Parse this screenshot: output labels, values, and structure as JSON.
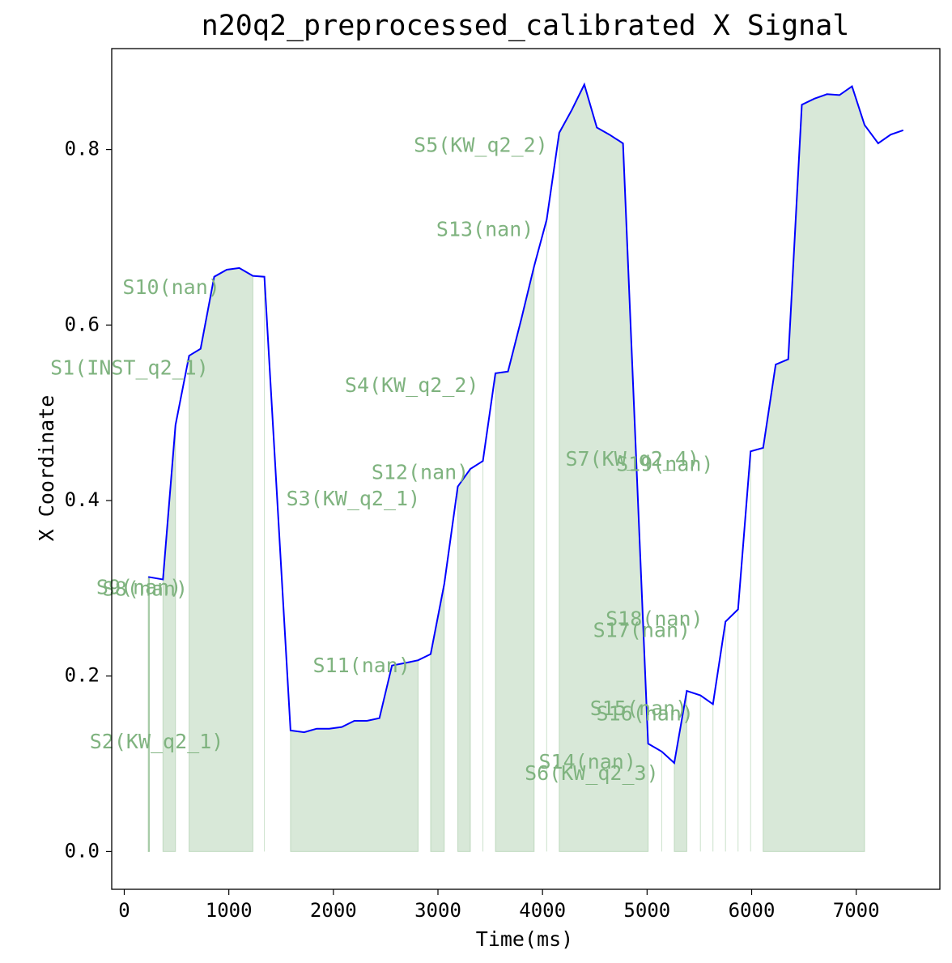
{
  "chart_data": {
    "type": "line",
    "title": "n20q2_preprocessed_calibrated X Signal",
    "xlabel": "Time(ms)",
    "ylabel": "X Coordinate",
    "xlim": [
      -120,
      7800
    ],
    "ylim": [
      -0.043,
      0.915
    ],
    "xticks": [
      0,
      1000,
      2000,
      3000,
      4000,
      5000,
      6000,
      7000
    ],
    "yticks": [
      0.0,
      0.2,
      0.4,
      0.6,
      0.8
    ],
    "ytick_labels": [
      "0.0",
      "0.2",
      "0.4",
      "0.6",
      "0.8"
    ],
    "grid": false,
    "line_color": "#0000ff",
    "fill_color": "#8fbc8f",
    "label_color": "#7fb37f",
    "series": [
      {
        "x": [
          230,
          370,
          490,
          620,
          730,
          860,
          980,
          1100,
          1230,
          1340,
          1590,
          1720,
          1840,
          1960,
          2080,
          2200,
          2320,
          2440,
          2560,
          2690,
          2810,
          2930,
          3060,
          3190,
          3310,
          3430,
          3550,
          3670,
          3800,
          3920,
          4040,
          4160,
          4280,
          4400,
          4520,
          4640,
          4770,
          5010,
          5140,
          5260,
          5380,
          5510,
          5630,
          5750,
          5870,
          5990,
          6110,
          6230,
          6350,
          6480,
          6600,
          6720,
          6840,
          6960,
          7080,
          7210,
          7330,
          7450
        ],
        "y": [
          0.313,
          0.31,
          0.486,
          0.565,
          0.573,
          0.655,
          0.663,
          0.665,
          0.656,
          0.655,
          0.138,
          0.136,
          0.14,
          0.14,
          0.142,
          0.149,
          0.149,
          0.152,
          0.212,
          0.215,
          0.218,
          0.225,
          0.305,
          0.416,
          0.436,
          0.445,
          0.545,
          0.547,
          0.608,
          0.667,
          0.72,
          0.819,
          0.845,
          0.874,
          0.825,
          0.817,
          0.807,
          0.123,
          0.114,
          0.101,
          0.183,
          0.178,
          0.168,
          0.262,
          0.276,
          0.456,
          0.46,
          0.555,
          0.561,
          0.851,
          0.858,
          0.863,
          0.862,
          0.872,
          0.828,
          0.807,
          0.817,
          0.822
        ]
      }
    ],
    "segments": [
      {
        "label": "S9(nan)",
        "start": 230,
        "end": 240,
        "lx": 140,
        "ly": 0.3
      },
      {
        "label": "S8(nan)",
        "start": 230,
        "end": 240,
        "lx": 200,
        "ly": 0.298
      },
      {
        "label": "S1(INST_q2_1)",
        "start": 370,
        "end": 490,
        "lx": 50,
        "ly": 0.55
      },
      {
        "label": "S10(nan)",
        "start": 620,
        "end": 1230,
        "lx": 450,
        "ly": 0.642
      },
      {
        "label": "S2(KW_q2_1)",
        "start": 1340,
        "end": 1340,
        "lx": 310,
        "ly": 0.124
      },
      {
        "label": "S11(nan)",
        "start": 1590,
        "end": 2810,
        "lx": 2270,
        "ly": 0.211
      },
      {
        "label": "S3(KW_q2_1)",
        "start": 2930,
        "end": 3060,
        "lx": 2190,
        "ly": 0.401
      },
      {
        "label": "S12(nan)",
        "start": 3190,
        "end": 3310,
        "lx": 2830,
        "ly": 0.431
      },
      {
        "label": "S4(KW_q2_2)",
        "start": 3430,
        "end": 3430,
        "lx": 2750,
        "ly": 0.53
      },
      {
        "label": "S13(nan)",
        "start": 3550,
        "end": 3920,
        "lx": 3450,
        "ly": 0.708
      },
      {
        "label": "S5(KW_q2_2)",
        "start": 4040,
        "end": 4040,
        "lx": 3410,
        "ly": 0.804
      },
      {
        "label": "S6(KW_q2_3)",
        "start": 4160,
        "end": 5010,
        "lx": 4470,
        "ly": 0.088
      },
      {
        "label": "S14(nan)",
        "start": 5140,
        "end": 5140,
        "lx": 4430,
        "ly": 0.101
      },
      {
        "label": "S7(KW_q2_4)",
        "start": 5260,
        "end": 5380,
        "lx": 4860,
        "ly": 0.446
      },
      {
        "label": "S19(nan)",
        "start": 5510,
        "end": 5510,
        "lx": 5170,
        "ly": 0.44
      },
      {
        "label": "S15(nan)",
        "start": 5630,
        "end": 5630,
        "lx": 4920,
        "ly": 0.162
      },
      {
        "label": "S16(nan)",
        "start": 5750,
        "end": 5750,
        "lx": 4980,
        "ly": 0.156
      },
      {
        "label": "S18(nan)",
        "start": 5870,
        "end": 5870,
        "lx": 5070,
        "ly": 0.264
      },
      {
        "label": "S17(nan)",
        "start": 5990,
        "end": 5990,
        "lx": 4950,
        "ly": 0.251
      },
      {
        "label": "",
        "start": 6110,
        "end": 7080,
        "lx": 0,
        "ly": 0
      }
    ]
  }
}
